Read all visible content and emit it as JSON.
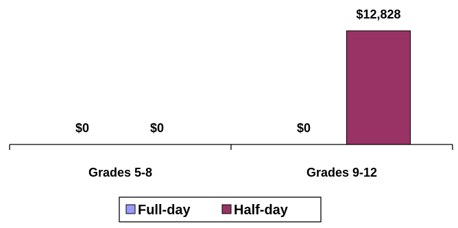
{
  "chart_data": {
    "type": "bar",
    "title": "",
    "xlabel": "",
    "ylabel": "",
    "categories": [
      "Grades 5-8",
      "Grades 9-12"
    ],
    "series": [
      {
        "name": "Full-day",
        "color": "#9999FF",
        "values": [
          0,
          0
        ],
        "labels": [
          "$0",
          "$0"
        ]
      },
      {
        "name": "Half-day",
        "color": "#993366",
        "values": [
          0,
          12828
        ],
        "labels": [
          "$0",
          "$12,828"
        ]
      }
    ],
    "ylim": [
      0,
      12828
    ],
    "grid": false,
    "legend": "bottom"
  }
}
